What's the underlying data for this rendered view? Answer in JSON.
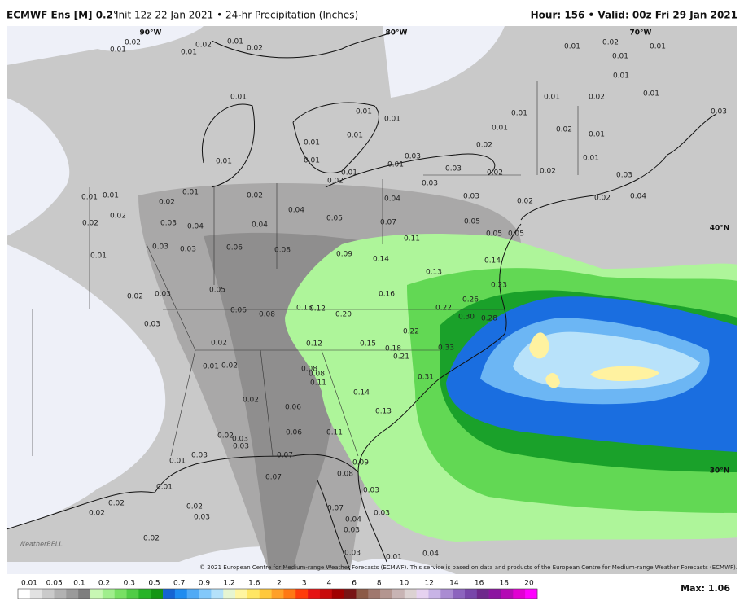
{
  "header": {
    "model": "ECMWF Ens [M] 0.2°",
    "info": "Init 12z 22 Jan 2021 • 24-hr Precipitation (Inches)",
    "valid": "Hour: 156 • Valid: 00z Fri 29 Jan 2021"
  },
  "map": {
    "grid_labels": [
      "90°W",
      "80°W",
      "70°W",
      "40°N",
      "30°N"
    ],
    "labels": [
      "0.02",
      "0.01",
      "0.02",
      "0.01",
      "0.01",
      "0.02",
      "0.01",
      "0.01",
      "0.01",
      "0.01",
      "0.01",
      "0.01",
      "0.01",
      "0.01",
      "0.02",
      "0.01",
      "0.03",
      "0.03",
      "0.03",
      "0.02",
      "0.02",
      "0.01",
      "0.01",
      "0.01",
      "0.02",
      "0.01",
      "0.02",
      "0.01",
      "0.01",
      "0.02",
      "0.01",
      "0.01",
      "0.01",
      "0.01",
      "0.02",
      "0.03",
      "0.02",
      "0.04",
      "0.03",
      "0.01",
      "0.01",
      "0.02",
      "0.02",
      "0.02",
      "0.01",
      "0.03",
      "0.04",
      "0.03",
      "0.03",
      "0.01",
      "0.02",
      "0.04",
      "0.04",
      "0.05",
      "0.04",
      "0.07",
      "0.03",
      "0.05",
      "0.02",
      "0.05",
      "0.05",
      "0.06",
      "0.08",
      "0.09",
      "0.14",
      "0.11",
      "0.13",
      "0.14",
      "0.23",
      "0.26",
      "0.30",
      "0.28",
      "0.22",
      "0.16",
      "0.20",
      "0.12",
      "0.15",
      "0.22",
      "0.05",
      "0.06",
      "0.08",
      "0.03",
      "0.02",
      "0.03",
      "0.02",
      "0.01",
      "0.02",
      "0.12",
      "0.15",
      "0.18",
      "0.21",
      "0.33",
      "0.31",
      "0.08",
      "0.08",
      "0.11",
      "0.14",
      "0.13",
      "0.02",
      "0.06",
      "0.06",
      "0.11",
      "0.02",
      "0.03",
      "0.03",
      "0.03",
      "0.07",
      "0.01",
      "0.01",
      "0.07",
      "0.08",
      "0.09",
      "0.03",
      "0.07",
      "0.04",
      "0.03",
      "0.02",
      "0.02",
      "0.02",
      "0.03",
      "0.02",
      "0.03",
      "0.03",
      "0.01",
      "0.04"
    ],
    "copyright": "© 2021 European Centre for Medium-range Weather Forecasts (ECMWF). This service is based on data and products of the European Centre for Medium-range Weather Forecasts (ECMWF).",
    "logo": "WeatherBELL"
  },
  "legend": {
    "labels": [
      0.01,
      0.05,
      0.1,
      0.2,
      0.3,
      0.5,
      0.7,
      0.9,
      1.2,
      1.6,
      2,
      3,
      4,
      6,
      8,
      10,
      12,
      14,
      16,
      18,
      20
    ],
    "max": "Max: 1.06"
  }
}
